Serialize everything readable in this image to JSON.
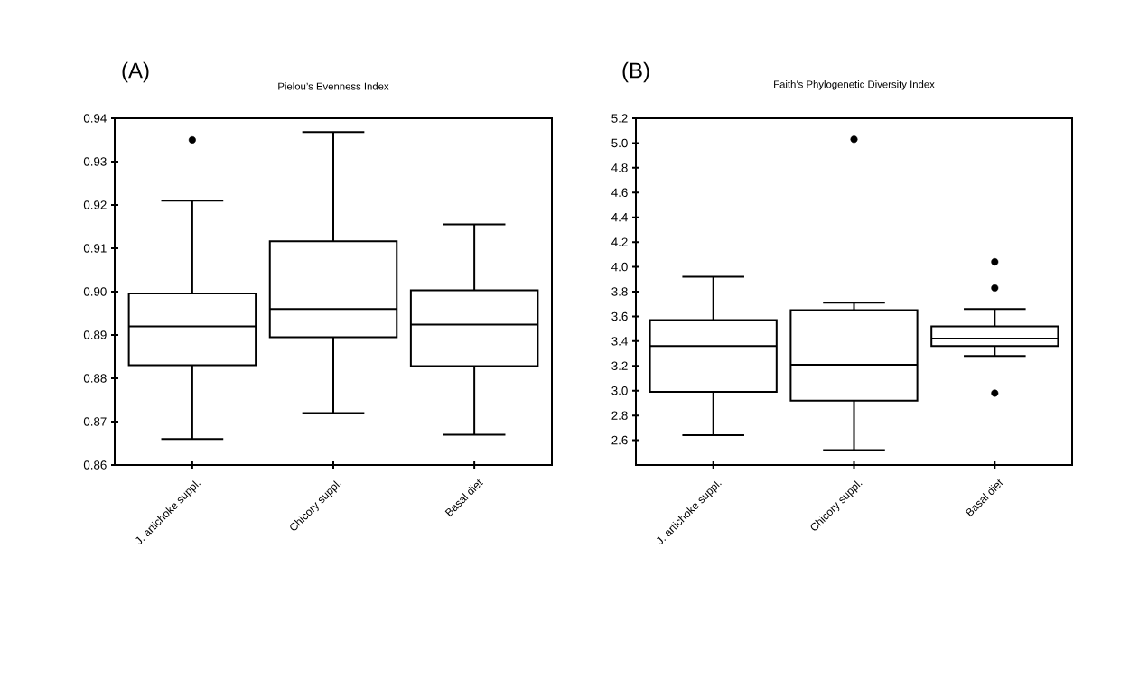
{
  "chart_data": [
    {
      "type": "box",
      "title": "Pielou’s Evenness Index",
      "annotations": [
        "(A)"
      ],
      "categories": [
        "J. artichoke suppl.",
        "Chicory suppl.",
        "Basal diet"
      ],
      "boxes": [
        {
          "low": 0.866,
          "q1": 0.883,
          "median": 0.892,
          "q3": 0.8996,
          "high": 0.921,
          "outliers": [
            0.935
          ]
        },
        {
          "low": 0.872,
          "q1": 0.8895,
          "median": 0.896,
          "q3": 0.9116,
          "high": 0.9368
        },
        {
          "low": 0.867,
          "q1": 0.8828,
          "median": 0.8924,
          "q3": 0.9003,
          "high": 0.9155
        }
      ],
      "ylim": [
        0.86,
        0.94
      ],
      "yticks": [
        0.86,
        0.87,
        0.88,
        0.89,
        {
          "value": 0.9,
          "label": "0.90"
        },
        0.91,
        0.92,
        0.93,
        0.94
      ]
    },
    {
      "type": "box",
      "title": "Faith’s Phylogenetic Diversity Index",
      "annotations": [
        "(B)"
      ],
      "categories": [
        "J. artichoke suppl.",
        "Chicory suppl.",
        "Basal diet"
      ],
      "boxes": [
        {
          "low": 2.64,
          "q1": 2.99,
          "median": 3.36,
          "q3": 3.57,
          "high": 3.92
        },
        {
          "low": 2.52,
          "q1": 2.92,
          "median": 3.21,
          "q3": 3.65,
          "high": 3.71,
          "outliers": [
            5.03
          ]
        },
        {
          "low": 3.28,
          "q1": 3.36,
          "median": 3.42,
          "q3": 3.52,
          "high": 3.66,
          "outliers": [
            2.98,
            3.83,
            4.04
          ]
        }
      ],
      "ylim": [
        2.4,
        5.2
      ],
      "yticks": [
        2.6,
        2.8,
        {
          "value": 3.0,
          "label": "3.0"
        },
        3.2,
        3.4,
        3.6,
        3.8,
        {
          "value": 4.0,
          "label": "4.0"
        },
        4.2,
        4.4,
        4.6,
        4.8,
        {
          "value": 5.0,
          "label": "5.0"
        },
        5.2
      ]
    }
  ]
}
